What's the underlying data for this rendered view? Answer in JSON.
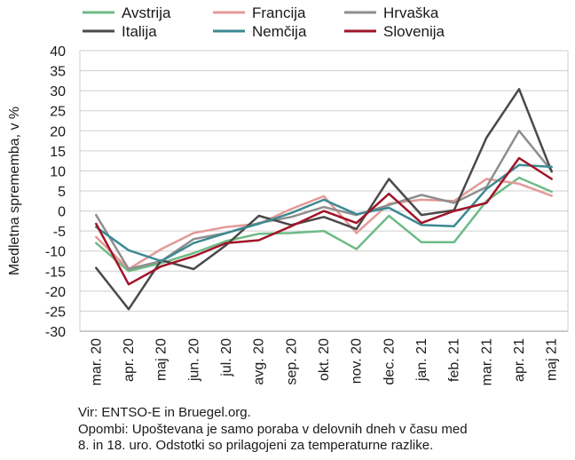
{
  "chart_data": {
    "type": "line",
    "ylabel": "Medletna sprememba, v %",
    "xlabel": "",
    "title": "",
    "ylim": [
      -30,
      40
    ],
    "yticks": [
      -30,
      -25,
      -20,
      -15,
      -10,
      -5,
      0,
      5,
      10,
      15,
      20,
      25,
      30,
      35,
      40
    ],
    "grid": true,
    "legend_position": "top",
    "categories": [
      "mar. 20",
      "apr. 20",
      "maj 20",
      "jun. 20",
      "jul. 20",
      "avg. 20",
      "sep. 20",
      "okt. 20",
      "nov. 20",
      "dec. 20",
      "jan. 21",
      "feb. 21",
      "mar. 21",
      "apr. 21",
      "maj 21"
    ],
    "series": [
      {
        "name": "Avstrija",
        "color": "#6dbb86",
        "width": 2.5,
        "values": [
          -8.0,
          -15.0,
          -13.0,
          -10.5,
          -7.5,
          -5.7,
          -5.5,
          -5.0,
          -9.5,
          -1.2,
          -7.8,
          -7.8,
          2.5,
          8.3,
          4.8
        ]
      },
      {
        "name": "Francija",
        "color": "#e39a98",
        "width": 2.5,
        "values": [
          -6.5,
          -14.5,
          -9.5,
          -5.5,
          -4.0,
          -3.2,
          0.5,
          3.7,
          -5.5,
          1.8,
          2.8,
          2.5,
          8.0,
          6.8,
          3.8
        ]
      },
      {
        "name": "Hrvaška",
        "color": "#8e8e8e",
        "width": 2.5,
        "values": [
          -1.0,
          -14.5,
          -12.5,
          -7.0,
          -5.5,
          -3.0,
          -1.5,
          1.0,
          -1.0,
          1.5,
          4.0,
          2.0,
          6.0,
          20.0,
          10.0
        ]
      },
      {
        "name": "Italija",
        "color": "#4a4a4a",
        "width": 2.5,
        "values": [
          -14.2,
          -24.5,
          -12.3,
          -14.5,
          -8.5,
          -1.2,
          -3.5,
          -1.5,
          -4.5,
          8.0,
          -1.0,
          0.2,
          18.3,
          30.4,
          9.8
        ]
      },
      {
        "name": "Nemčija",
        "color": "#3c8a92",
        "width": 2.5,
        "values": [
          -4.0,
          -9.8,
          -12.5,
          -8.0,
          -5.5,
          -3.2,
          -0.5,
          2.8,
          -0.8,
          0.8,
          -3.5,
          -3.8,
          5.5,
          11.5,
          11.0
        ]
      },
      {
        "name": "Slovenija",
        "color": "#a01428",
        "width": 2.5,
        "values": [
          -3.2,
          -18.3,
          -13.8,
          -11.3,
          -8.0,
          -7.3,
          -3.8,
          0.0,
          -3.0,
          4.3,
          -3.0,
          0.0,
          2.0,
          13.2,
          8.0
        ]
      }
    ]
  },
  "notes": {
    "source": "Vir: ENTSO-E in Bruegel.org.",
    "note_line1": "Opombi: Upoštevana je samo poraba v delovnih dneh v času med",
    "note_line2": "8. in 18. uro. Odstotki so prilagojeni za temperaturne razlike."
  }
}
